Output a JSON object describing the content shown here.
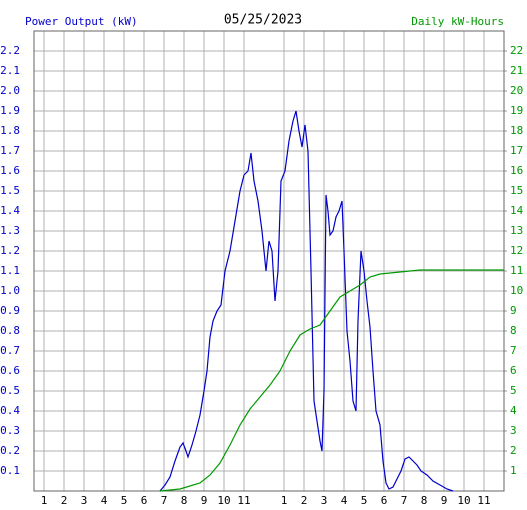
{
  "chart_data": {
    "type": "line",
    "title": "05/25/2023",
    "ylabel": "Power Output (kW)",
    "y2label": "Daily kW-Hours",
    "xlim": [
      0.5,
      24
    ],
    "ylim": [
      0,
      2.3
    ],
    "y2lim": [
      0,
      23
    ],
    "grid": true,
    "xticks": [
      1,
      2,
      3,
      4,
      5,
      6,
      7,
      8,
      9,
      10,
      11,
      {
        "value": 13,
        "label": "1"
      },
      {
        "value": 14,
        "label": "2"
      },
      {
        "value": 15,
        "label": "3"
      },
      {
        "value": 16,
        "label": "4"
      },
      {
        "value": 17,
        "label": "5"
      },
      {
        "value": 18,
        "label": "6"
      },
      {
        "value": 19,
        "label": "7"
      },
      {
        "value": 20,
        "label": "8"
      },
      {
        "value": 21,
        "label": "9"
      },
      {
        "value": 22,
        "label": "10"
      },
      {
        "value": 23,
        "label": "11"
      }
    ],
    "yticks": [
      0.1,
      0.2,
      0.3,
      0.4,
      0.5,
      0.6,
      0.7,
      0.8,
      0.9,
      {
        "value": 1,
        "label": "1.0"
      },
      1.1,
      1.2,
      1.3,
      1.4,
      1.5,
      1.6,
      1.7,
      1.8,
      1.9,
      {
        "value": 2,
        "label": "2.0"
      },
      2.1,
      2.2
    ],
    "y2ticks": [
      1,
      2,
      3,
      4,
      5,
      6,
      7,
      8,
      9,
      10,
      11,
      12,
      13,
      14,
      15,
      16,
      17,
      18,
      19,
      20,
      21,
      22
    ],
    "series": [
      {
        "color": "#0000cc",
        "x": [
          6.8,
          7.05,
          7.3,
          7.55,
          7.8,
          7.95,
          8.1,
          8.2,
          8.4,
          8.6,
          8.8,
          9.0,
          9.15,
          9.3,
          9.45,
          9.65,
          9.85,
          10.05,
          10.3,
          10.55,
          10.8,
          11.0,
          11.2,
          11.35,
          11.5,
          11.7,
          11.9,
          12.1,
          12.25,
          12.4,
          12.55,
          12.7,
          12.85,
          13.05,
          13.25,
          13.45,
          13.6,
          13.75,
          13.9,
          14.05,
          14.2,
          14.35,
          14.5,
          14.65,
          14.8,
          14.9,
          15.0,
          15.1,
          15.2,
          15.3,
          15.45,
          15.6,
          15.75,
          15.9,
          16.0,
          16.15,
          16.3,
          16.45,
          16.6,
          16.7,
          16.85,
          17.0,
          17.15,
          17.3,
          17.45,
          17.6,
          17.8,
          17.95,
          18.1,
          18.25,
          18.45,
          18.65,
          18.85,
          19.05,
          19.25,
          19.45,
          19.65,
          19.85,
          20.15,
          20.45,
          20.8,
          21.15,
          21.45
        ],
        "values": [
          0,
          0.03,
          0.07,
          0.15,
          0.22,
          0.24,
          0.2,
          0.17,
          0.23,
          0.3,
          0.38,
          0.5,
          0.6,
          0.77,
          0.85,
          0.9,
          0.93,
          1.1,
          1.2,
          1.35,
          1.5,
          1.58,
          1.6,
          1.69,
          1.55,
          1.45,
          1.3,
          1.1,
          1.25,
          1.2,
          0.95,
          1.1,
          1.55,
          1.6,
          1.75,
          1.85,
          1.9,
          1.8,
          1.72,
          1.83,
          1.7,
          1.1,
          0.45,
          0.35,
          0.25,
          0.2,
          0.5,
          1.48,
          1.4,
          1.28,
          1.3,
          1.37,
          1.4,
          1.45,
          1.2,
          0.8,
          0.65,
          0.45,
          0.4,
          0.85,
          1.2,
          1.1,
          0.95,
          0.82,
          0.6,
          0.4,
          0.33,
          0.15,
          0.04,
          0.01,
          0.02,
          0.06,
          0.1,
          0.16,
          0.17,
          0.15,
          0.13,
          0.1,
          0.08,
          0.05,
          0.03,
          0.01,
          0
        ]
      },
      {
        "color": "#009900",
        "axis": "y2",
        "x": [
          6.8,
          7.8,
          8.8,
          9.3,
          9.8,
          10.3,
          10.8,
          11.3,
          11.8,
          12.3,
          12.8,
          13.3,
          13.8,
          14.3,
          14.8,
          15.3,
          15.8,
          16.3,
          16.8,
          17.3,
          17.8,
          18.3,
          18.8,
          19.8,
          20.8,
          24
        ],
        "values": [
          0,
          0.1,
          0.4,
          0.8,
          1.4,
          2.3,
          3.3,
          4.1,
          4.7,
          5.3,
          6.0,
          7.0,
          7.8,
          8.1,
          8.3,
          9.0,
          9.7,
          10.0,
          10.3,
          10.7,
          10.85,
          10.9,
          10.95,
          11.05,
          11.05,
          11.05
        ]
      }
    ]
  }
}
